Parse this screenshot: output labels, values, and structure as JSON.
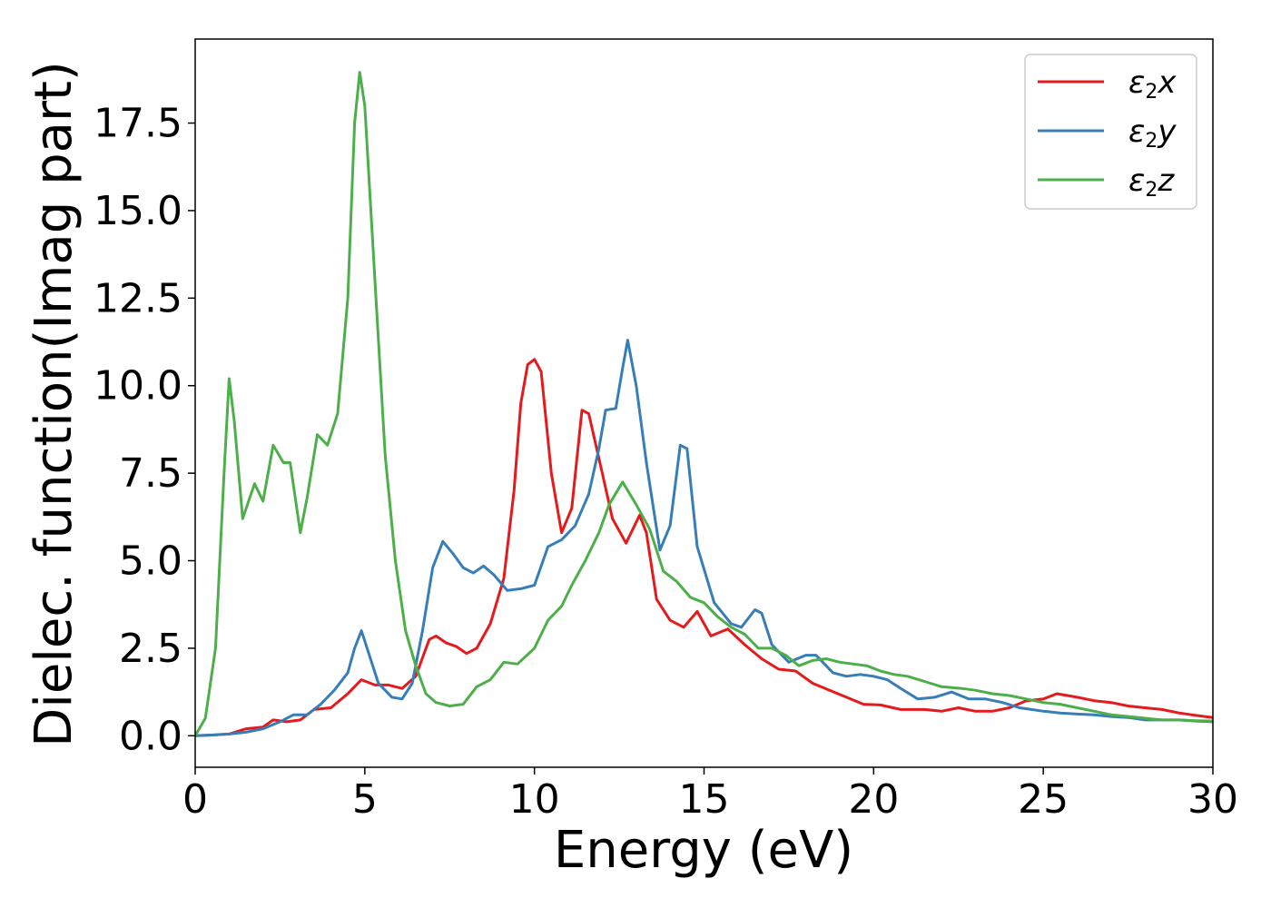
{
  "chart_data": {
    "type": "line",
    "title": "",
    "xlabel": "Energy (eV)",
    "ylabel": "Dielec. function(Imag part)",
    "xlim": [
      0,
      30
    ],
    "ylim": [
      -0.9,
      19.9
    ],
    "xticks": [
      0,
      5,
      10,
      15,
      20,
      25,
      30
    ],
    "xtick_labels": [
      "0",
      "5",
      "10",
      "15",
      "20",
      "25",
      "30"
    ],
    "yticks": [
      0.0,
      2.5,
      5.0,
      7.5,
      10.0,
      12.5,
      15.0,
      17.5
    ],
    "ytick_labels": [
      "0.0",
      "2.5",
      "5.0",
      "7.5",
      "10.0",
      "12.5",
      "15.0",
      "17.5"
    ],
    "grid": false,
    "legend_position": "top-right",
    "series": [
      {
        "name": "ε2x",
        "legend_base": "ε",
        "legend_sub": "2",
        "legend_suffix": "x",
        "color": "#e41a1c",
        "points": [
          [
            0,
            0
          ],
          [
            0.5,
            0.02
          ],
          [
            1,
            0.05
          ],
          [
            1.5,
            0.2
          ],
          [
            2,
            0.25
          ],
          [
            2.3,
            0.45
          ],
          [
            2.7,
            0.4
          ],
          [
            3.1,
            0.45
          ],
          [
            3.5,
            0.75
          ],
          [
            4,
            0.8
          ],
          [
            4.5,
            1.2
          ],
          [
            4.9,
            1.6
          ],
          [
            5.3,
            1.45
          ],
          [
            5.7,
            1.45
          ],
          [
            6.1,
            1.35
          ],
          [
            6.5,
            1.7
          ],
          [
            6.9,
            2.75
          ],
          [
            7.1,
            2.85
          ],
          [
            7.4,
            2.65
          ],
          [
            7.7,
            2.55
          ],
          [
            8,
            2.35
          ],
          [
            8.3,
            2.5
          ],
          [
            8.7,
            3.2
          ],
          [
            9.1,
            4.5
          ],
          [
            9.4,
            7.0
          ],
          [
            9.6,
            9.5
          ],
          [
            9.8,
            10.6
          ],
          [
            10,
            10.75
          ],
          [
            10.2,
            10.4
          ],
          [
            10.5,
            7.5
          ],
          [
            10.8,
            5.8
          ],
          [
            11.1,
            6.5
          ],
          [
            11.4,
            9.3
          ],
          [
            11.6,
            9.2
          ],
          [
            12,
            7.5
          ],
          [
            12.3,
            6.2
          ],
          [
            12.7,
            5.5
          ],
          [
            13.1,
            6.3
          ],
          [
            13.3,
            5.8
          ],
          [
            13.6,
            3.9
          ],
          [
            14,
            3.3
          ],
          [
            14.4,
            3.1
          ],
          [
            14.8,
            3.55
          ],
          [
            15.2,
            2.85
          ],
          [
            15.7,
            3.05
          ],
          [
            16.2,
            2.6
          ],
          [
            16.7,
            2.2
          ],
          [
            17.2,
            1.9
          ],
          [
            17.7,
            1.85
          ],
          [
            18.2,
            1.5
          ],
          [
            18.7,
            1.3
          ],
          [
            19.2,
            1.1
          ],
          [
            19.7,
            0.9
          ],
          [
            20.2,
            0.88
          ],
          [
            20.8,
            0.75
          ],
          [
            21.5,
            0.75
          ],
          [
            22,
            0.7
          ],
          [
            22.5,
            0.8
          ],
          [
            23,
            0.7
          ],
          [
            23.5,
            0.7
          ],
          [
            24,
            0.8
          ],
          [
            24.5,
            1.0
          ],
          [
            25,
            1.05
          ],
          [
            25.4,
            1.2
          ],
          [
            26,
            1.1
          ],
          [
            26.5,
            1.0
          ],
          [
            27,
            0.95
          ],
          [
            27.5,
            0.85
          ],
          [
            28,
            0.8
          ],
          [
            28.5,
            0.75
          ],
          [
            29,
            0.65
          ],
          [
            29.5,
            0.58
          ],
          [
            30,
            0.52
          ]
        ]
      },
      {
        "name": "ε2y",
        "legend_base": "ε",
        "legend_sub": "2",
        "legend_suffix": "y",
        "color": "#377eb8",
        "points": [
          [
            0,
            0
          ],
          [
            0.5,
            0.02
          ],
          [
            1,
            0.05
          ],
          [
            1.5,
            0.1
          ],
          [
            2,
            0.2
          ],
          [
            2.5,
            0.4
          ],
          [
            2.9,
            0.6
          ],
          [
            3.3,
            0.6
          ],
          [
            3.7,
            0.9
          ],
          [
            4.1,
            1.3
          ],
          [
            4.5,
            1.8
          ],
          [
            4.7,
            2.5
          ],
          [
            4.9,
            3.0
          ],
          [
            5.1,
            2.4
          ],
          [
            5.4,
            1.5
          ],
          [
            5.8,
            1.1
          ],
          [
            6.1,
            1.05
          ],
          [
            6.4,
            1.5
          ],
          [
            6.7,
            3.0
          ],
          [
            7,
            4.8
          ],
          [
            7.3,
            5.55
          ],
          [
            7.6,
            5.2
          ],
          [
            7.9,
            4.8
          ],
          [
            8.2,
            4.65
          ],
          [
            8.5,
            4.85
          ],
          [
            8.8,
            4.6
          ],
          [
            9.2,
            4.15
          ],
          [
            9.6,
            4.2
          ],
          [
            10,
            4.3
          ],
          [
            10.4,
            5.4
          ],
          [
            10.8,
            5.6
          ],
          [
            11.2,
            6.0
          ],
          [
            11.6,
            6.9
          ],
          [
            11.9,
            8.2
          ],
          [
            12.1,
            9.3
          ],
          [
            12.4,
            9.35
          ],
          [
            12.6,
            10.5
          ],
          [
            12.75,
            11.3
          ],
          [
            13,
            10.0
          ],
          [
            13.3,
            7.8
          ],
          [
            13.7,
            5.3
          ],
          [
            14,
            6.0
          ],
          [
            14.3,
            8.3
          ],
          [
            14.5,
            8.2
          ],
          [
            14.8,
            5.4
          ],
          [
            15.3,
            3.8
          ],
          [
            15.8,
            3.2
          ],
          [
            16.1,
            3.1
          ],
          [
            16.5,
            3.6
          ],
          [
            16.7,
            3.5
          ],
          [
            17,
            2.6
          ],
          [
            17.5,
            2.1
          ],
          [
            18,
            2.3
          ],
          [
            18.3,
            2.3
          ],
          [
            18.8,
            1.8
          ],
          [
            19.2,
            1.7
          ],
          [
            19.6,
            1.75
          ],
          [
            20,
            1.7
          ],
          [
            20.4,
            1.6
          ],
          [
            20.8,
            1.35
          ],
          [
            21.3,
            1.05
          ],
          [
            21.8,
            1.1
          ],
          [
            22.3,
            1.25
          ],
          [
            22.8,
            1.05
          ],
          [
            23.3,
            1.05
          ],
          [
            23.8,
            0.95
          ],
          [
            24.3,
            0.8
          ],
          [
            25,
            0.7
          ],
          [
            25.5,
            0.65
          ],
          [
            26,
            0.62
          ],
          [
            26.5,
            0.6
          ],
          [
            27,
            0.55
          ],
          [
            27.5,
            0.52
          ],
          [
            28,
            0.45
          ],
          [
            28.5,
            0.45
          ],
          [
            29,
            0.45
          ],
          [
            29.5,
            0.42
          ],
          [
            30,
            0.4
          ]
        ]
      },
      {
        "name": "ε2z",
        "legend_base": "ε",
        "legend_sub": "2",
        "legend_suffix": "z",
        "color": "#4daf4a",
        "points": [
          [
            0,
            0
          ],
          [
            0.3,
            0.5
          ],
          [
            0.6,
            2.5
          ],
          [
            0.85,
            7.5
          ],
          [
            1,
            10.2
          ],
          [
            1.15,
            9.0
          ],
          [
            1.4,
            6.2
          ],
          [
            1.75,
            7.2
          ],
          [
            2,
            6.7
          ],
          [
            2.3,
            8.3
          ],
          [
            2.6,
            7.8
          ],
          [
            2.8,
            7.8
          ],
          [
            3.1,
            5.8
          ],
          [
            3.3,
            6.8
          ],
          [
            3.6,
            8.6
          ],
          [
            3.9,
            8.3
          ],
          [
            4.2,
            9.2
          ],
          [
            4.5,
            12.5
          ],
          [
            4.7,
            17.5
          ],
          [
            4.85,
            18.95
          ],
          [
            5,
            18.0
          ],
          [
            5.3,
            13.0
          ],
          [
            5.6,
            8.0
          ],
          [
            5.9,
            5.0
          ],
          [
            6.2,
            3.0
          ],
          [
            6.5,
            2.0
          ],
          [
            6.8,
            1.2
          ],
          [
            7.1,
            0.95
          ],
          [
            7.5,
            0.85
          ],
          [
            7.9,
            0.9
          ],
          [
            8.3,
            1.4
          ],
          [
            8.7,
            1.6
          ],
          [
            9.1,
            2.1
          ],
          [
            9.5,
            2.05
          ],
          [
            10,
            2.5
          ],
          [
            10.4,
            3.3
          ],
          [
            10.8,
            3.7
          ],
          [
            11.1,
            4.3
          ],
          [
            11.5,
            5.0
          ],
          [
            11.9,
            5.8
          ],
          [
            12.2,
            6.6
          ],
          [
            12.6,
            7.25
          ],
          [
            13,
            6.6
          ],
          [
            13.4,
            5.9
          ],
          [
            13.8,
            4.7
          ],
          [
            14.2,
            4.4
          ],
          [
            14.6,
            3.95
          ],
          [
            15,
            3.8
          ],
          [
            15.4,
            3.4
          ],
          [
            15.8,
            3.1
          ],
          [
            16.2,
            2.9
          ],
          [
            16.6,
            2.5
          ],
          [
            17,
            2.5
          ],
          [
            17.4,
            2.3
          ],
          [
            17.8,
            2.0
          ],
          [
            18.2,
            2.15
          ],
          [
            18.6,
            2.2
          ],
          [
            19,
            2.1
          ],
          [
            19.4,
            2.05
          ],
          [
            19.8,
            2.0
          ],
          [
            20.2,
            1.85
          ],
          [
            20.6,
            1.75
          ],
          [
            21,
            1.7
          ],
          [
            21.5,
            1.55
          ],
          [
            22,
            1.4
          ],
          [
            22.6,
            1.35
          ],
          [
            23,
            1.3
          ],
          [
            23.5,
            1.2
          ],
          [
            24,
            1.15
          ],
          [
            24.5,
            1.05
          ],
          [
            25,
            0.95
          ],
          [
            25.5,
            0.9
          ],
          [
            26,
            0.8
          ],
          [
            26.5,
            0.7
          ],
          [
            27,
            0.6
          ],
          [
            27.5,
            0.55
          ],
          [
            28,
            0.5
          ],
          [
            28.5,
            0.45
          ],
          [
            29,
            0.45
          ],
          [
            29.5,
            0.43
          ],
          [
            30,
            0.42
          ]
        ]
      }
    ]
  }
}
